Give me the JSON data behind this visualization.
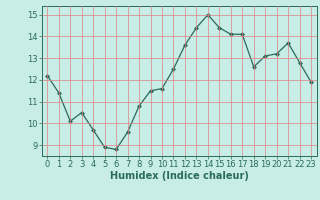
{
  "x": [
    0,
    1,
    2,
    3,
    4,
    5,
    6,
    7,
    8,
    9,
    10,
    11,
    12,
    13,
    14,
    15,
    16,
    17,
    18,
    19,
    20,
    21,
    22,
    23
  ],
  "y": [
    12.2,
    11.4,
    10.1,
    10.5,
    9.7,
    8.9,
    8.8,
    9.6,
    10.8,
    11.5,
    11.6,
    12.5,
    13.6,
    14.4,
    15.0,
    14.4,
    14.1,
    14.1,
    12.6,
    13.1,
    13.2,
    13.7,
    12.8,
    11.9
  ],
  "xlabel": "Humidex (Indice chaleur)",
  "ylim": [
    8.5,
    15.4
  ],
  "xlim": [
    -0.5,
    23.5
  ],
  "line_color": "#2a6b5e",
  "bg_color": "#c8ece6",
  "grid_color": "#e08080",
  "yticks": [
    9,
    10,
    11,
    12,
    13,
    14,
    15
  ],
  "xticks": [
    0,
    1,
    2,
    3,
    4,
    5,
    6,
    7,
    8,
    9,
    10,
    11,
    12,
    13,
    14,
    15,
    16,
    17,
    18,
    19,
    20,
    21,
    22,
    23
  ],
  "marker": "D",
  "marker_size": 2.0,
  "line_width": 0.9,
  "tick_fontsize": 6.0,
  "xlabel_fontsize": 7.0
}
